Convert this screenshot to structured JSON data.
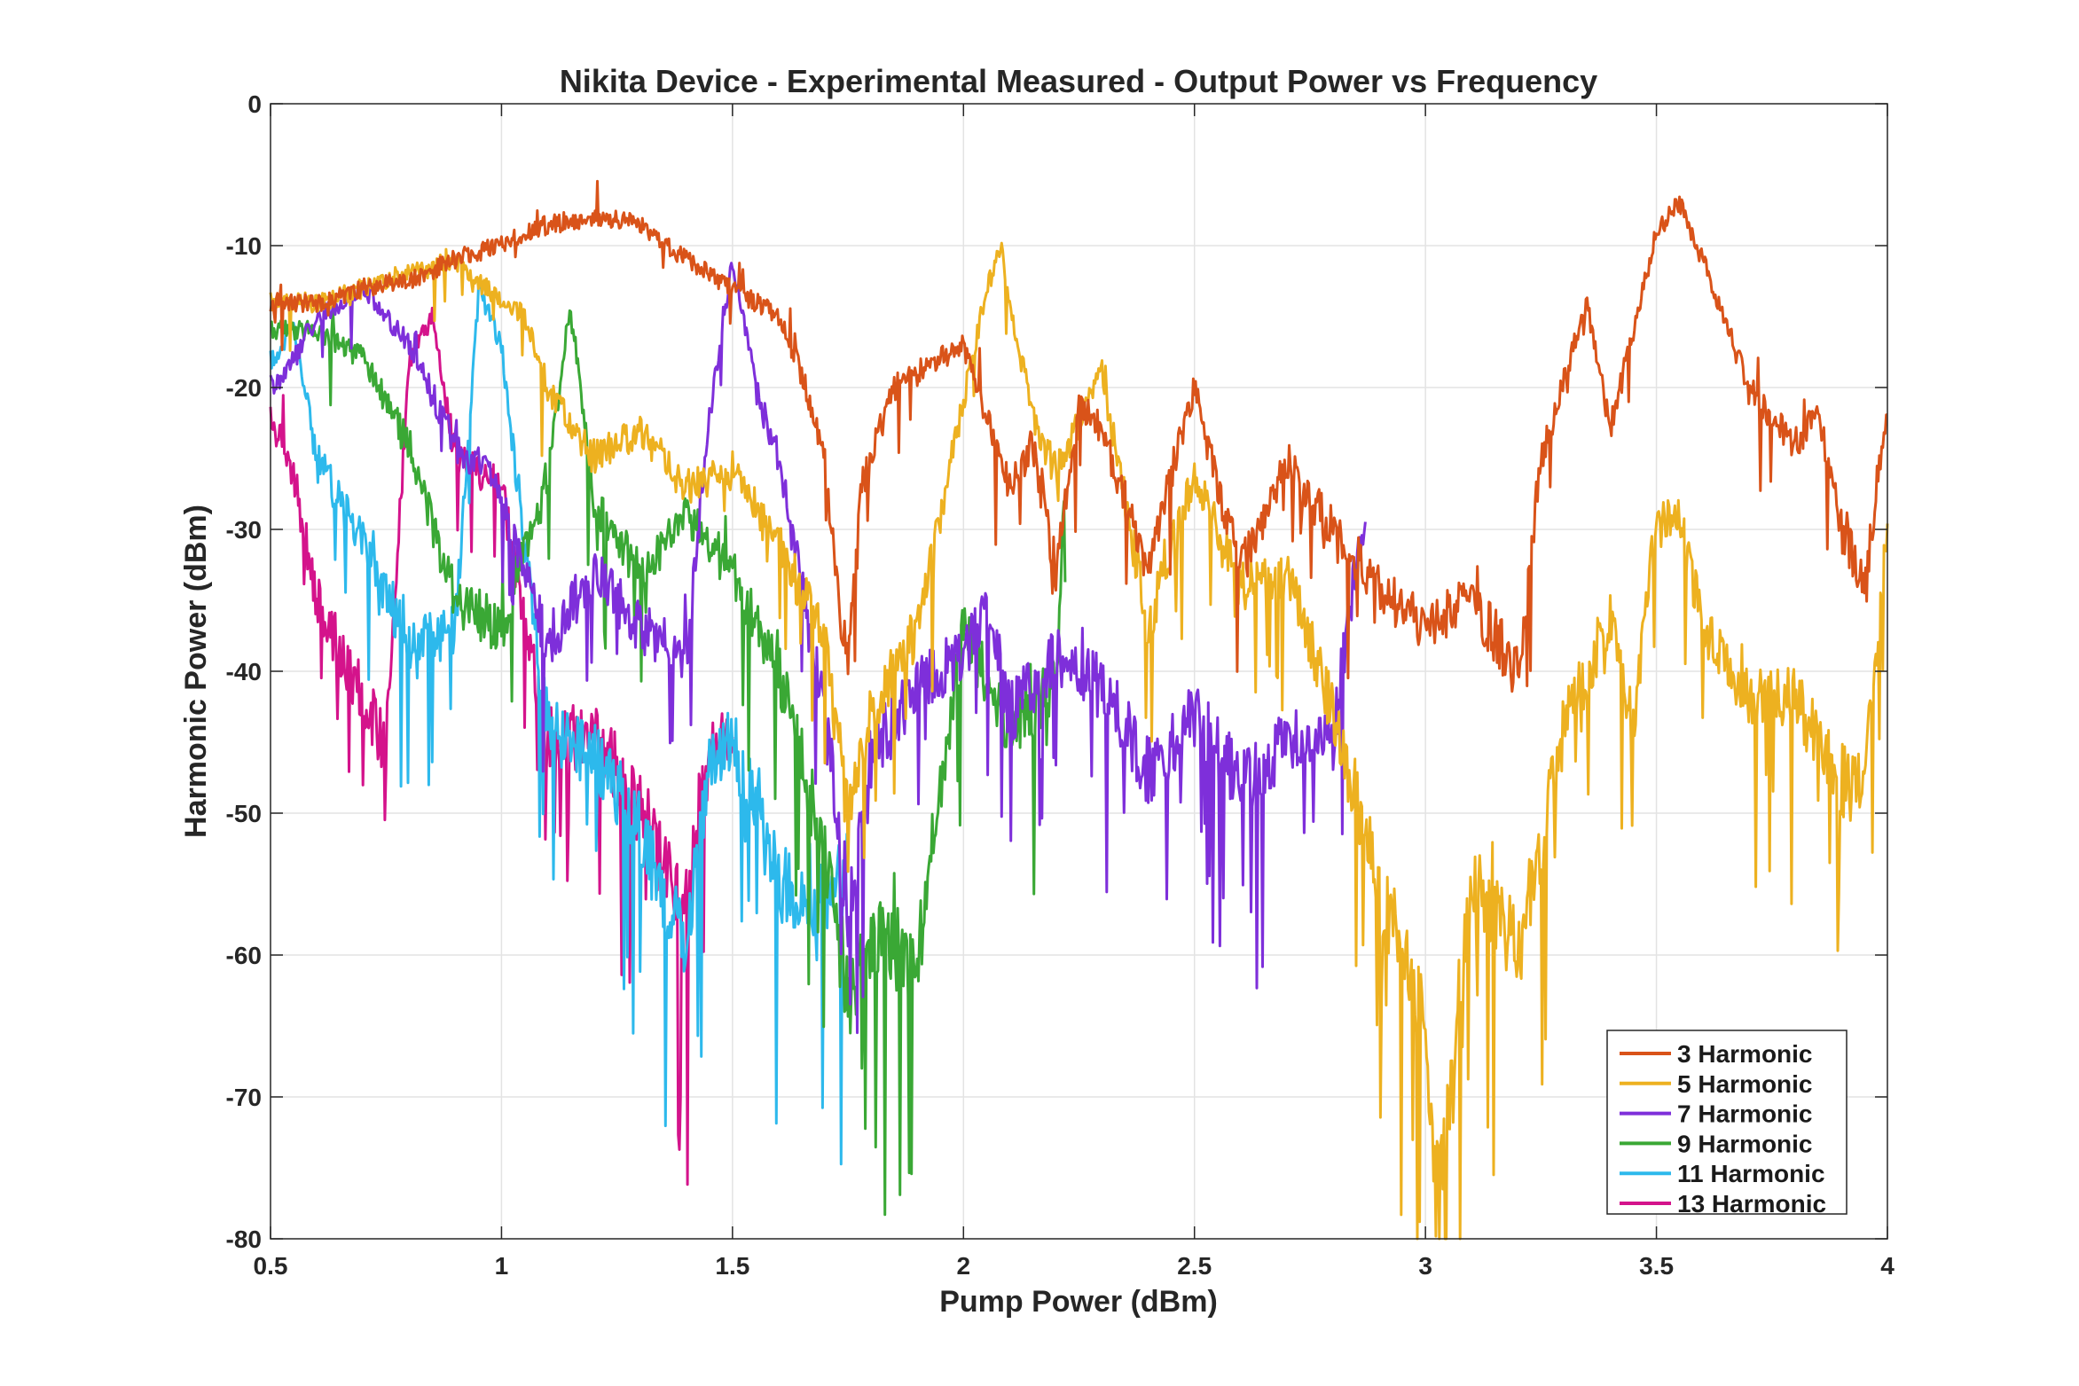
{
  "chart_data": {
    "type": "line",
    "title": "Nikita Device - Experimental Measured - Output Power vs Frequency",
    "xlabel": "Pump Power (dBm)",
    "ylabel": "Harmonic Power (dBm)",
    "xlim": [
      0.5,
      4
    ],
    "ylim": [
      -80,
      0
    ],
    "xticks": [
      0.5,
      1,
      1.5,
      2,
      2.5,
      3,
      3.5,
      4
    ],
    "xtick_labels": [
      "0.5",
      "1",
      "1.5",
      "2",
      "2.5",
      "3",
      "3.5",
      "4"
    ],
    "yticks": [
      0,
      -10,
      -20,
      -30,
      -40,
      -50,
      -60,
      -70,
      -80
    ],
    "ytick_labels": [
      "0",
      "-10",
      "-20",
      "-30",
      "-40",
      "-50",
      "-60",
      "-70",
      "-80"
    ],
    "grid": true,
    "legend_position": "bottom-right",
    "series": [
      {
        "name": "3 Harmonic",
        "color": "#D95319",
        "points": [
          [
            0.5,
            -14
          ],
          [
            0.6,
            -14
          ],
          [
            0.7,
            -13
          ],
          [
            0.8,
            -12.5
          ],
          [
            0.9,
            -11
          ],
          [
            1.0,
            -10
          ],
          [
            1.1,
            -8.5
          ],
          [
            1.2,
            -8
          ],
          [
            1.3,
            -8.5
          ],
          [
            1.4,
            -11
          ],
          [
            1.5,
            -13
          ],
          [
            1.6,
            -15
          ],
          [
            1.65,
            -19
          ],
          [
            1.7,
            -25
          ],
          [
            1.73,
            -35
          ],
          [
            1.75,
            -40
          ],
          [
            1.78,
            -27
          ],
          [
            1.85,
            -20
          ],
          [
            1.9,
            -19
          ],
          [
            2.0,
            -17
          ],
          [
            2.05,
            -22
          ],
          [
            2.1,
            -27
          ],
          [
            2.15,
            -24
          ],
          [
            2.2,
            -33
          ],
          [
            2.25,
            -21
          ],
          [
            2.3,
            -23
          ],
          [
            2.4,
            -33
          ],
          [
            2.45,
            -26
          ],
          [
            2.5,
            -20
          ],
          [
            2.55,
            -27
          ],
          [
            2.6,
            -33
          ],
          [
            2.7,
            -25
          ],
          [
            2.8,
            -30
          ],
          [
            2.9,
            -34
          ],
          [
            3.0,
            -37
          ],
          [
            3.1,
            -35
          ],
          [
            3.2,
            -40
          ],
          [
            3.25,
            -25
          ],
          [
            3.35,
            -14
          ],
          [
            3.4,
            -23
          ],
          [
            3.45,
            -16
          ],
          [
            3.5,
            -9
          ],
          [
            3.55,
            -7
          ],
          [
            3.6,
            -11
          ],
          [
            3.7,
            -20
          ],
          [
            3.8,
            -24
          ],
          [
            3.85,
            -22
          ],
          [
            3.9,
            -30
          ],
          [
            3.95,
            -34
          ],
          [
            4.0,
            -21
          ]
        ]
      },
      {
        "name": "5 Harmonic",
        "color": "#EDB120",
        "points": [
          [
            0.5,
            -14
          ],
          [
            0.6,
            -14
          ],
          [
            0.7,
            -13
          ],
          [
            0.8,
            -12
          ],
          [
            0.9,
            -11
          ],
          [
            1.0,
            -14
          ],
          [
            1.05,
            -15
          ],
          [
            1.1,
            -20
          ],
          [
            1.2,
            -25
          ],
          [
            1.3,
            -23
          ],
          [
            1.4,
            -27
          ],
          [
            1.5,
            -26
          ],
          [
            1.6,
            -31
          ],
          [
            1.7,
            -38
          ],
          [
            1.75,
            -50
          ],
          [
            1.8,
            -43
          ],
          [
            1.9,
            -37
          ],
          [
            2.0,
            -21
          ],
          [
            2.05,
            -13
          ],
          [
            2.08,
            -10
          ],
          [
            2.1,
            -14
          ],
          [
            2.15,
            -22
          ],
          [
            2.2,
            -26
          ],
          [
            2.3,
            -19
          ],
          [
            2.4,
            -37
          ],
          [
            2.5,
            -26
          ],
          [
            2.6,
            -34
          ],
          [
            2.7,
            -33
          ],
          [
            2.8,
            -43
          ],
          [
            2.9,
            -55
          ],
          [
            2.95,
            -60
          ],
          [
            3.0,
            -66
          ],
          [
            3.02,
            -77
          ],
          [
            3.05,
            -70
          ],
          [
            3.1,
            -54
          ],
          [
            3.2,
            -60
          ],
          [
            3.3,
            -44
          ],
          [
            3.4,
            -36
          ],
          [
            3.45,
            -44
          ],
          [
            3.5,
            -29
          ],
          [
            3.55,
            -29
          ],
          [
            3.6,
            -37
          ],
          [
            3.7,
            -42
          ],
          [
            3.8,
            -42
          ],
          [
            3.9,
            -48
          ],
          [
            3.95,
            -47
          ],
          [
            4.0,
            -30
          ]
        ]
      },
      {
        "name": "7 Harmonic",
        "color": "#7E2FDA",
        "points": [
          [
            0.5,
            -20
          ],
          [
            0.55,
            -18
          ],
          [
            0.6,
            -15
          ],
          [
            0.7,
            -13
          ],
          [
            0.8,
            -17
          ],
          [
            0.9,
            -24
          ],
          [
            1.0,
            -27
          ],
          [
            1.05,
            -33
          ],
          [
            1.1,
            -38
          ],
          [
            1.2,
            -33
          ],
          [
            1.3,
            -37
          ],
          [
            1.4,
            -39
          ],
          [
            1.45,
            -22
          ],
          [
            1.5,
            -11
          ],
          [
            1.55,
            -20
          ],
          [
            1.6,
            -25
          ],
          [
            1.7,
            -43
          ],
          [
            1.75,
            -57
          ],
          [
            1.8,
            -46
          ],
          [
            1.9,
            -41
          ],
          [
            2.0,
            -39
          ],
          [
            2.05,
            -35
          ],
          [
            2.1,
            -43
          ],
          [
            2.2,
            -39
          ],
          [
            2.3,
            -41
          ],
          [
            2.4,
            -47
          ],
          [
            2.5,
            -43
          ],
          [
            2.6,
            -48
          ],
          [
            2.7,
            -45
          ],
          [
            2.8,
            -45
          ],
          [
            2.85,
            -32
          ],
          [
            2.87,
            -30
          ]
        ]
      },
      {
        "name": "9 Harmonic",
        "color": "#3AA835",
        "points": [
          [
            0.5,
            -16
          ],
          [
            0.6,
            -16
          ],
          [
            0.7,
            -18
          ],
          [
            0.8,
            -24
          ],
          [
            0.9,
            -35
          ],
          [
            1.0,
            -37
          ],
          [
            1.1,
            -26
          ],
          [
            1.15,
            -14
          ],
          [
            1.2,
            -28
          ],
          [
            1.3,
            -33
          ],
          [
            1.4,
            -29
          ],
          [
            1.5,
            -33
          ],
          [
            1.6,
            -40
          ],
          [
            1.7,
            -53
          ],
          [
            1.75,
            -63
          ],
          [
            1.8,
            -59
          ],
          [
            1.9,
            -60
          ],
          [
            2.0,
            -37
          ],
          [
            2.1,
            -44
          ],
          [
            2.2,
            -41
          ],
          [
            2.22,
            -27
          ]
        ]
      },
      {
        "name": "11 Harmonic",
        "color": "#2DB9EC",
        "points": [
          [
            0.5,
            -18
          ],
          [
            0.55,
            -16
          ],
          [
            0.6,
            -25
          ],
          [
            0.7,
            -31
          ],
          [
            0.8,
            -38
          ],
          [
            0.9,
            -37
          ],
          [
            0.95,
            -13
          ],
          [
            1.0,
            -17
          ],
          [
            1.05,
            -31
          ],
          [
            1.1,
            -44
          ],
          [
            1.2,
            -46
          ],
          [
            1.3,
            -51
          ],
          [
            1.4,
            -60
          ],
          [
            1.45,
            -46
          ],
          [
            1.5,
            -45
          ],
          [
            1.6,
            -55
          ],
          [
            1.7,
            -56
          ],
          [
            1.75,
            -54
          ]
        ]
      },
      {
        "name": "13 Harmonic",
        "color": "#D4138B",
        "points": [
          [
            0.5,
            -22
          ],
          [
            0.55,
            -26
          ],
          [
            0.6,
            -35
          ],
          [
            0.7,
            -42
          ],
          [
            0.75,
            -45
          ],
          [
            0.8,
            -18
          ],
          [
            0.85,
            -15
          ],
          [
            0.9,
            -25
          ],
          [
            1.0,
            -27
          ],
          [
            1.1,
            -45
          ],
          [
            1.2,
            -44
          ],
          [
            1.3,
            -50
          ],
          [
            1.4,
            -57
          ],
          [
            1.45,
            -46
          ],
          [
            1.5,
            -44
          ]
        ]
      }
    ]
  }
}
